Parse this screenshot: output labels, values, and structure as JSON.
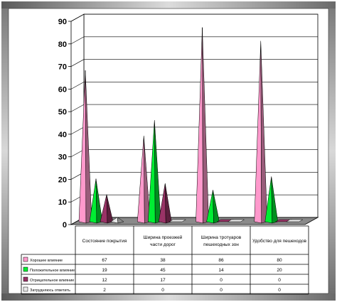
{
  "chart_data": {
    "type": "bar",
    "style": "3d-cone",
    "categories": [
      "Состояние покрытия",
      "Ширина проезжей части дорог",
      "Ширина тротуаров",
      "Удобство для пешеходов"
    ],
    "category_lines": [
      [
        "Состояние покрытия"
      ],
      [
        "Ширина проезжей",
        "части дорог"
      ],
      [
        "Ширина тротуаров",
        "пешеходных зон"
      ],
      [
        "Удобство для пешеходов"
      ]
    ],
    "series": [
      {
        "name": "Хорошее влияние",
        "values": [
          67,
          38,
          86,
          80
        ],
        "color": "#ff99cc"
      },
      {
        "name": "Положительное влияние",
        "values": [
          19,
          45,
          14,
          20
        ],
        "color": "#00ee33"
      },
      {
        "name": "Отрицательное влияние",
        "values": [
          12,
          17,
          0,
          0
        ],
        "color": "#993366"
      },
      {
        "name": "Затрудняюсь ответить",
        "values": [
          2,
          0,
          0,
          0
        ],
        "color": "#e8e8e8"
      }
    ],
    "yticks": [
      0,
      10,
      20,
      30,
      40,
      50,
      60,
      70,
      80,
      90
    ],
    "ylim": [
      0,
      90
    ],
    "grid": true,
    "legend": "data-table-below",
    "title": "",
    "xlabel": "",
    "ylabel": ""
  }
}
